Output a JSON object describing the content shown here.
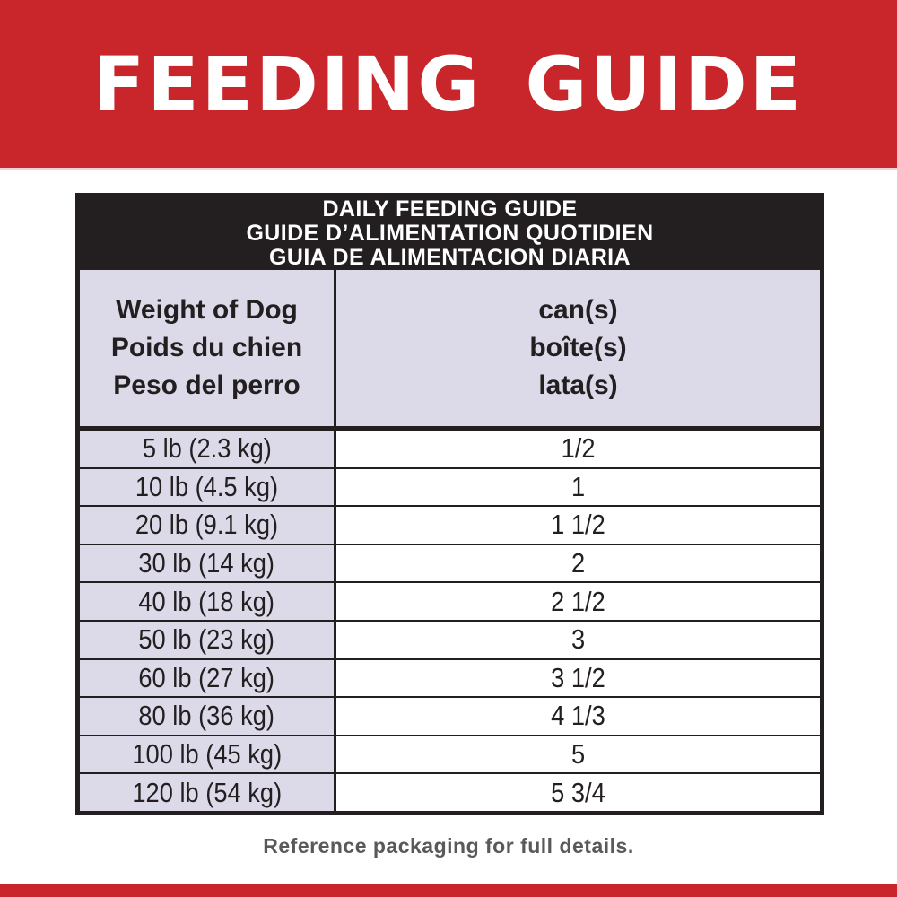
{
  "banner": {
    "title": "FEEDING GUIDE"
  },
  "table": {
    "title_lines": [
      "DAILY FEEDING GUIDE",
      "GUIDE D’ALIMENTATION QUOTIDIEN",
      "GUIA DE ALIMENTACION DIARIA"
    ],
    "col_weight_lines": [
      "Weight of Dog",
      "Poids du chien",
      "Peso del perro"
    ],
    "col_cans_lines": [
      "can(s)",
      "boîte(s)",
      "lata(s)"
    ],
    "rows": [
      {
        "weight": "5 lb (2.3 kg)",
        "cans": "1/2"
      },
      {
        "weight": "10 lb (4.5 kg)",
        "cans": "1"
      },
      {
        "weight": "20 lb (9.1 kg)",
        "cans": "1 1/2"
      },
      {
        "weight": "30 lb (14 kg)",
        "cans": "2"
      },
      {
        "weight": "40 lb (18 kg)",
        "cans": "2 1/2"
      },
      {
        "weight": "50 lb (23 kg)",
        "cans": "3"
      },
      {
        "weight": "60 lb (27 kg)",
        "cans": "3 1/2"
      },
      {
        "weight": "80 lb (36 kg)",
        "cans": "4 1/3"
      },
      {
        "weight": "100 lb (45 kg)",
        "cans": "5"
      },
      {
        "weight": "120 lb (54 kg)",
        "cans": "5 3/4"
      }
    ]
  },
  "footer": {
    "note": "Reference packaging for full details."
  },
  "colors": {
    "banner_red": "#c9262b",
    "table_black": "#231f20",
    "row_lavender": "#dcd9e9",
    "note_gray": "#58595b"
  }
}
